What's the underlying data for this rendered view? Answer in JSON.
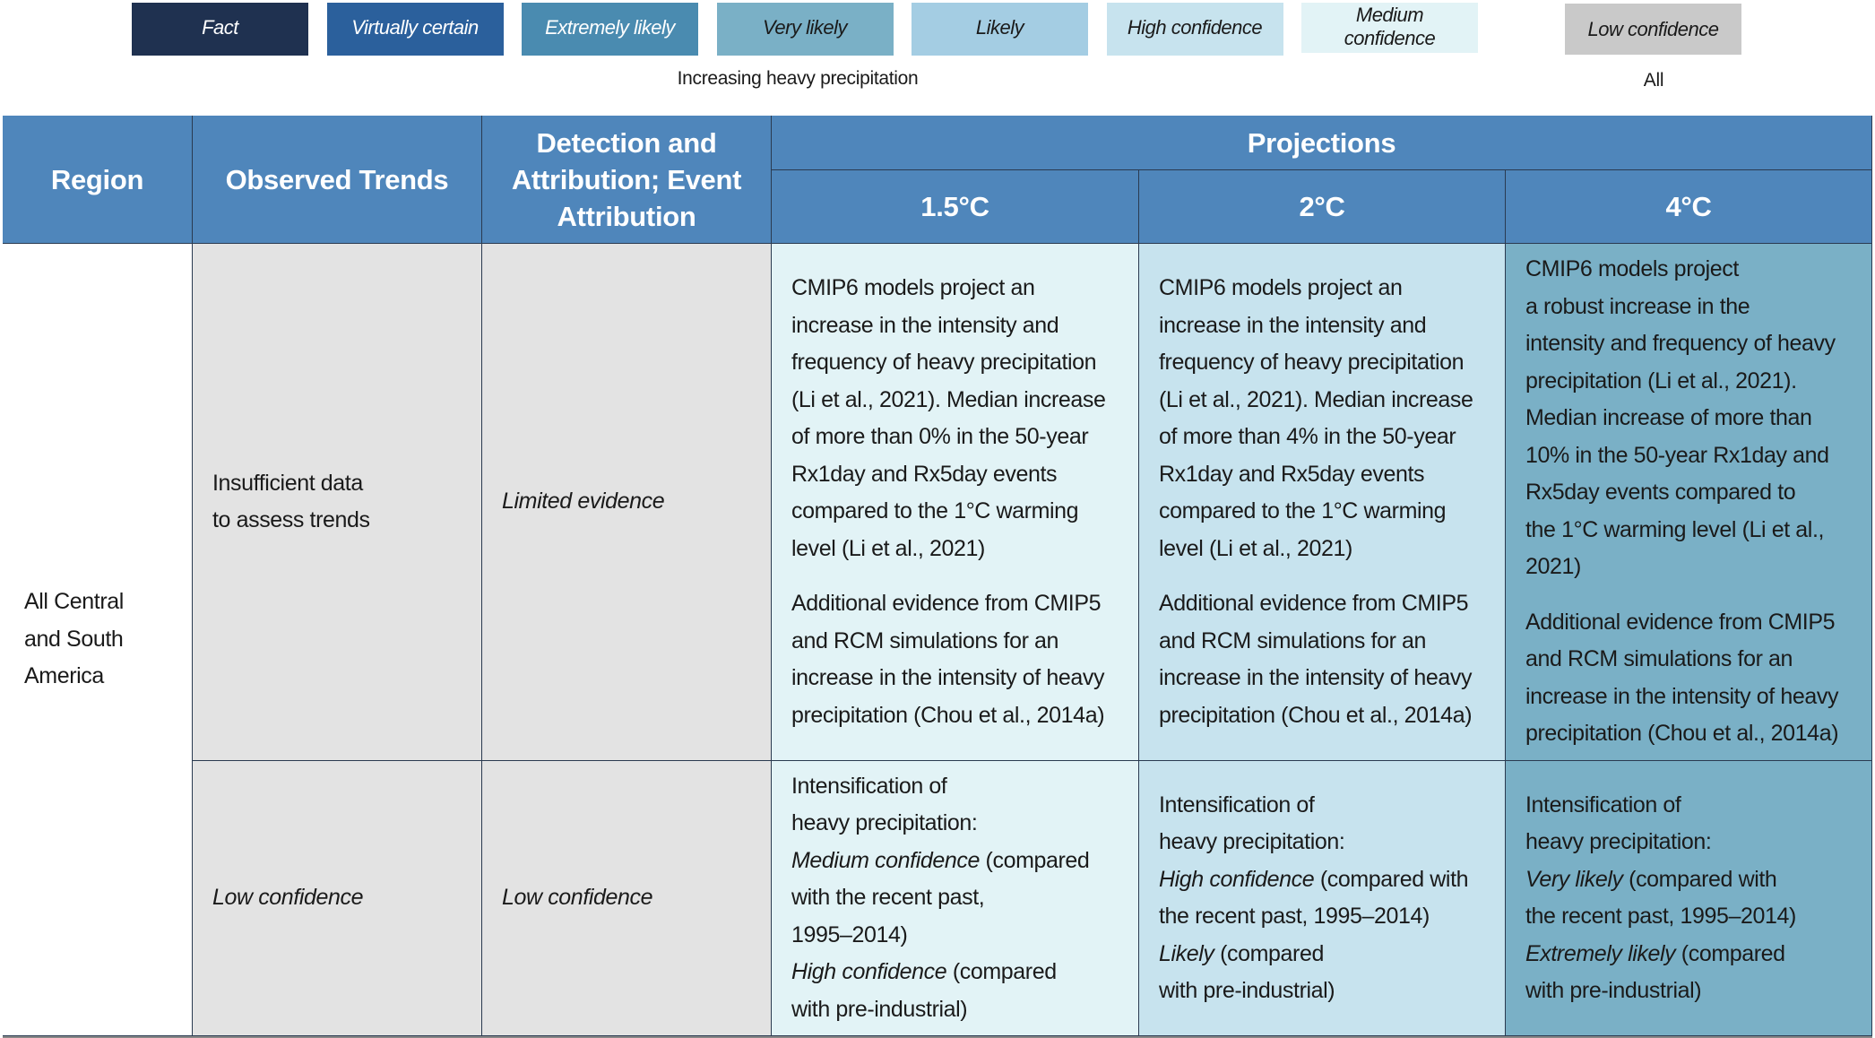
{
  "legend": {
    "items": [
      {
        "label": "Fact",
        "color": "#1f3150",
        "text_color": "#ffffff"
      },
      {
        "label": "Virtually certain",
        "color": "#2b609c",
        "text_color": "#ffffff"
      },
      {
        "label": "Extremely likely",
        "color": "#4a8bb0",
        "text_color": "#ffffff"
      },
      {
        "label": "Very likely",
        "color": "#7ab0c6",
        "text_color": "#1a1a1a"
      },
      {
        "label": "Likely",
        "color": "#a4cde3",
        "text_color": "#1a1a1a"
      },
      {
        "label": "High confidence",
        "color": "#c7e3ee",
        "text_color": "#1a1a1a"
      },
      {
        "label": "Medium confidence",
        "color": "#e2f3f6",
        "text_color": "#1a1a1a"
      }
    ],
    "caption": "Increasing heavy precipitation",
    "other": {
      "label": "Low confidence",
      "color": "#c9c9c9",
      "caption": "All"
    }
  },
  "table": {
    "header_color": "#4f86bb",
    "headers": {
      "region": "Region",
      "observed": "Observed Trends",
      "detection": "Detection and Attribution; Event Attribution",
      "projections": "Projections",
      "p15": "1.5°C",
      "p2": "2°C",
      "p4": "4°C"
    },
    "region": "All Central and South America",
    "rows": [
      {
        "observed": [
          [
            [
              "Insufficient data",
              false
            ]
          ],
          [
            [
              "to assess trends",
              false
            ]
          ]
        ],
        "detection": [
          [
            [
              "Limited evidence",
              true
            ]
          ]
        ],
        "p15": [
          [
            [
              [
                "CMIP6 models project an",
                false
              ]
            ],
            [
              [
                "increase in the intensity and",
                false
              ]
            ],
            [
              [
                "frequency of heavy precipitation",
                false
              ]
            ],
            [
              [
                "(Li et al., 2021). Median increase",
                false
              ]
            ],
            [
              [
                "of more than 0% in the 50-year",
                false
              ]
            ],
            [
              [
                "Rx1day and Rx5day events",
                false
              ]
            ],
            [
              [
                "compared to the 1°C warming",
                false
              ]
            ],
            [
              [
                "level (Li et al., 2021)",
                false
              ]
            ]
          ],
          [
            [
              [
                "Additional evidence from CMIP5",
                false
              ]
            ],
            [
              [
                "and RCM simulations for an",
                false
              ]
            ],
            [
              [
                "increase in the intensity of heavy",
                false
              ]
            ],
            [
              [
                "precipitation (Chou et al., 2014a)",
                false
              ]
            ]
          ]
        ],
        "p2": [
          [
            [
              [
                "CMIP6 models project an",
                false
              ]
            ],
            [
              [
                "increase in the intensity and",
                false
              ]
            ],
            [
              [
                "frequency of heavy precipitation",
                false
              ]
            ],
            [
              [
                "(Li et al., 2021). Median increase",
                false
              ]
            ],
            [
              [
                "of more than 4% in the 50-year",
                false
              ]
            ],
            [
              [
                "Rx1day and Rx5day events",
                false
              ]
            ],
            [
              [
                "compared to the 1°C warming",
                false
              ]
            ],
            [
              [
                "level (Li et al., 2021)",
                false
              ]
            ]
          ],
          [
            [
              [
                "Additional evidence from CMIP5",
                false
              ]
            ],
            [
              [
                "and RCM simulations for an",
                false
              ]
            ],
            [
              [
                "increase in the intensity of heavy",
                false
              ]
            ],
            [
              [
                "precipitation (Chou et al., 2014a)",
                false
              ]
            ]
          ]
        ],
        "p4": [
          [
            [
              [
                "CMIP6 models project",
                false
              ]
            ],
            [
              [
                "a robust increase in the",
                false
              ]
            ],
            [
              [
                "intensity and frequency of heavy",
                false
              ]
            ],
            [
              [
                "precipitation (Li et al., 2021).",
                false
              ]
            ],
            [
              [
                "Median increase of more than",
                false
              ]
            ],
            [
              [
                "10% in the 50-year Rx1day and",
                false
              ]
            ],
            [
              [
                "Rx5day events compared to",
                false
              ]
            ],
            [
              [
                "the 1°C warming level (Li et al.,",
                false
              ]
            ],
            [
              [
                "2021)",
                false
              ]
            ]
          ],
          [
            [
              [
                "Additional evidence from CMIP5",
                false
              ]
            ],
            [
              [
                "and RCM simulations for an",
                false
              ]
            ],
            [
              [
                "increase in the intensity of heavy",
                false
              ]
            ],
            [
              [
                "precipitation (Chou et al., 2014a)",
                false
              ]
            ]
          ]
        ]
      },
      {
        "observed": [
          [
            [
              "Low confidence",
              true
            ]
          ]
        ],
        "detection": [
          [
            [
              "Low confidence",
              true
            ]
          ]
        ],
        "p15": [
          [
            [
              [
                "Intensification of",
                false
              ]
            ],
            [
              [
                "heavy precipitation:",
                false
              ]
            ],
            [
              [
                "Medium confidence",
                true
              ],
              [
                " (compared",
                false
              ]
            ],
            [
              [
                "with the recent past,",
                false
              ]
            ],
            [
              [
                "1995–2014)",
                false
              ]
            ],
            [
              [
                "High confidence",
                true
              ],
              [
                " (compared",
                false
              ]
            ],
            [
              [
                "with pre-industrial)",
                false
              ]
            ]
          ]
        ],
        "p2": [
          [
            [
              [
                "Intensification of",
                false
              ]
            ],
            [
              [
                "heavy precipitation:",
                false
              ]
            ],
            [
              [
                "High confidence",
                true
              ],
              [
                " (compared with",
                false
              ]
            ],
            [
              [
                "the recent past, 1995–2014)",
                false
              ]
            ],
            [
              [
                "Likely",
                true
              ],
              [
                " (compared",
                false
              ]
            ],
            [
              [
                "with pre-industrial)",
                false
              ]
            ]
          ]
        ],
        "p4": [
          [
            [
              [
                "Intensification of",
                false
              ]
            ],
            [
              [
                "heavy precipitation:",
                false
              ]
            ],
            [
              [
                "Very likely",
                true
              ],
              [
                " (compared with",
                false
              ]
            ],
            [
              [
                "the recent past, 1995–2014)",
                false
              ]
            ],
            [
              [
                "Extremely likely",
                true
              ],
              [
                " (compared",
                false
              ]
            ],
            [
              [
                "with pre-industrial)",
                false
              ]
            ]
          ]
        ]
      }
    ],
    "column_colors": {
      "region": "#ffffff",
      "observed": "#e3e3e3",
      "detection": "#e3e3e3",
      "p15": "#e2f3f6",
      "p2": "#c7e3ee",
      "p4": "#7ab0c6"
    }
  }
}
